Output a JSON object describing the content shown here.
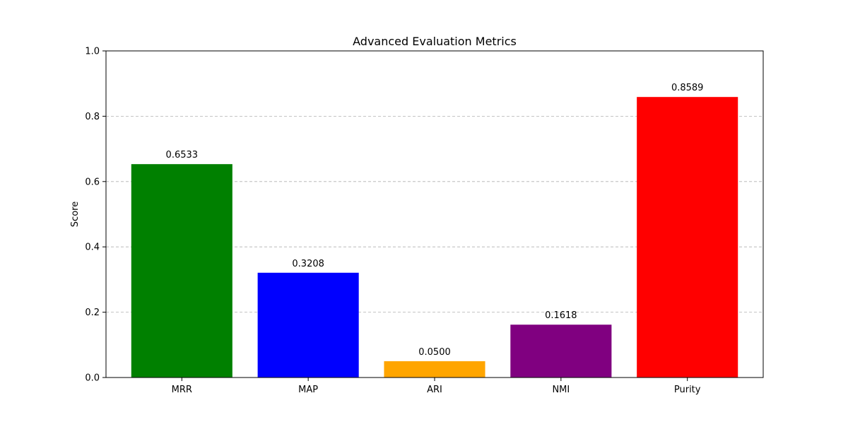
{
  "chart_data": {
    "type": "bar",
    "title": "Advanced Evaluation Metrics",
    "xlabel": "",
    "ylabel": "Score",
    "categories": [
      "MRR",
      "MAP",
      "ARI",
      "NMI",
      "Purity"
    ],
    "values": [
      0.6533,
      0.3208,
      0.05,
      0.1618,
      0.8589
    ],
    "value_labels": [
      "0.6533",
      "0.3208",
      "0.0500",
      "0.1618",
      "0.8589"
    ],
    "colors": [
      "#008000",
      "#0000ff",
      "#ffa500",
      "#800080",
      "#ff0000"
    ],
    "ylim": [
      0,
      1
    ],
    "yticks": [
      "0.0",
      "0.2",
      "0.4",
      "0.6",
      "0.8",
      "1.0"
    ],
    "grid": "y-dashed",
    "legend": "none"
  }
}
